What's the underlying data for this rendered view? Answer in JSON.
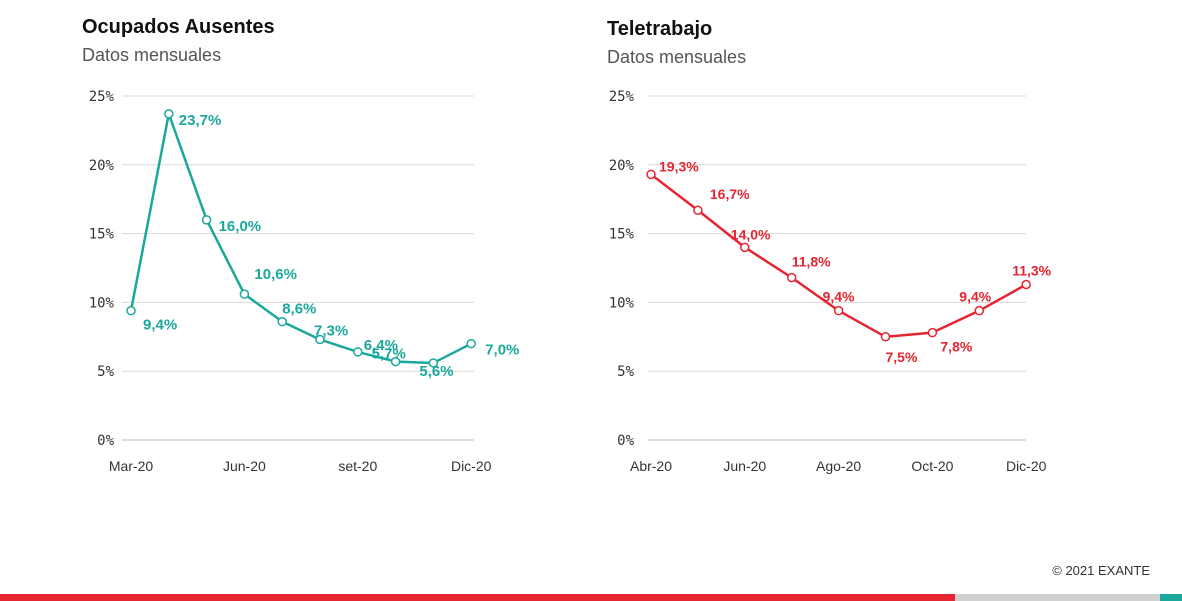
{
  "footer": {
    "credit": "© 2021 EXANTE",
    "bar_colors": [
      "#e52531",
      "#d0d0d0",
      "#1ba89c"
    ]
  },
  "chart_data": [
    {
      "type": "line",
      "title": "Ocupados Ausentes",
      "subtitle": "Datos mensuales",
      "color": "#1ba89c",
      "ylim": [
        0,
        25
      ],
      "yticks": [
        {
          "v": 0,
          "label": "0%"
        },
        {
          "v": 5,
          "label": "5%"
        },
        {
          "v": 10,
          "label": "10%"
        },
        {
          "v": 15,
          "label": "15%"
        },
        {
          "v": 20,
          "label": "20%"
        },
        {
          "v": 25,
          "label": "25%"
        }
      ],
      "grid": true,
      "legend": "none",
      "x": [
        "Mar-20",
        "Abr-20",
        "May-20",
        "Jun-20",
        "Jul-20",
        "Ago-20",
        "set-20",
        "Oct-20",
        "Nov-20",
        "Dic-20"
      ],
      "xtick_labels": [
        {
          "i": 0,
          "label": "Mar-20"
        },
        {
          "i": 3,
          "label": "Jun-20"
        },
        {
          "i": 6,
          "label": "set-20"
        },
        {
          "i": 9,
          "label": "Dic-20"
        }
      ],
      "values": [
        9.4,
        23.7,
        16.0,
        10.6,
        8.6,
        7.3,
        6.4,
        5.7,
        5.6,
        7.0
      ],
      "labels": [
        "9,4%",
        "23,7%",
        "16,0%",
        "10,6%",
        "8,6%",
        "7,3%",
        "6,4%",
        "5,7%",
        "5,6%",
        "7,0%"
      ]
    },
    {
      "type": "line",
      "title": "Teletrabajo",
      "subtitle": "Datos mensuales",
      "color": "#e52531",
      "ylim": [
        0,
        25
      ],
      "yticks": [
        {
          "v": 0,
          "label": "0%"
        },
        {
          "v": 5,
          "label": "5%"
        },
        {
          "v": 10,
          "label": "10%"
        },
        {
          "v": 15,
          "label": "15%"
        },
        {
          "v": 20,
          "label": "20%"
        },
        {
          "v": 25,
          "label": "25%"
        }
      ],
      "grid": true,
      "legend": "none",
      "x": [
        "Abr-20",
        "May-20",
        "Jun-20",
        "Jul-20",
        "Ago-20",
        "Set-20",
        "Oct-20",
        "Nov-20",
        "Dic-20"
      ],
      "xtick_labels": [
        {
          "i": 0,
          "label": "Abr-20"
        },
        {
          "i": 2,
          "label": "Jun-20"
        },
        {
          "i": 4,
          "label": "Ago-20"
        },
        {
          "i": 6,
          "label": "Oct-20"
        },
        {
          "i": 8,
          "label": "Dic-20"
        }
      ],
      "values": [
        19.3,
        16.7,
        14.0,
        11.8,
        9.4,
        7.5,
        7.8,
        9.4,
        11.3
      ],
      "labels": [
        "19,3%",
        "16,7%",
        "14,0%",
        "11,8%",
        "9,4%",
        "7,5%",
        "7,8%",
        "9,4%",
        "11,3%"
      ]
    }
  ]
}
